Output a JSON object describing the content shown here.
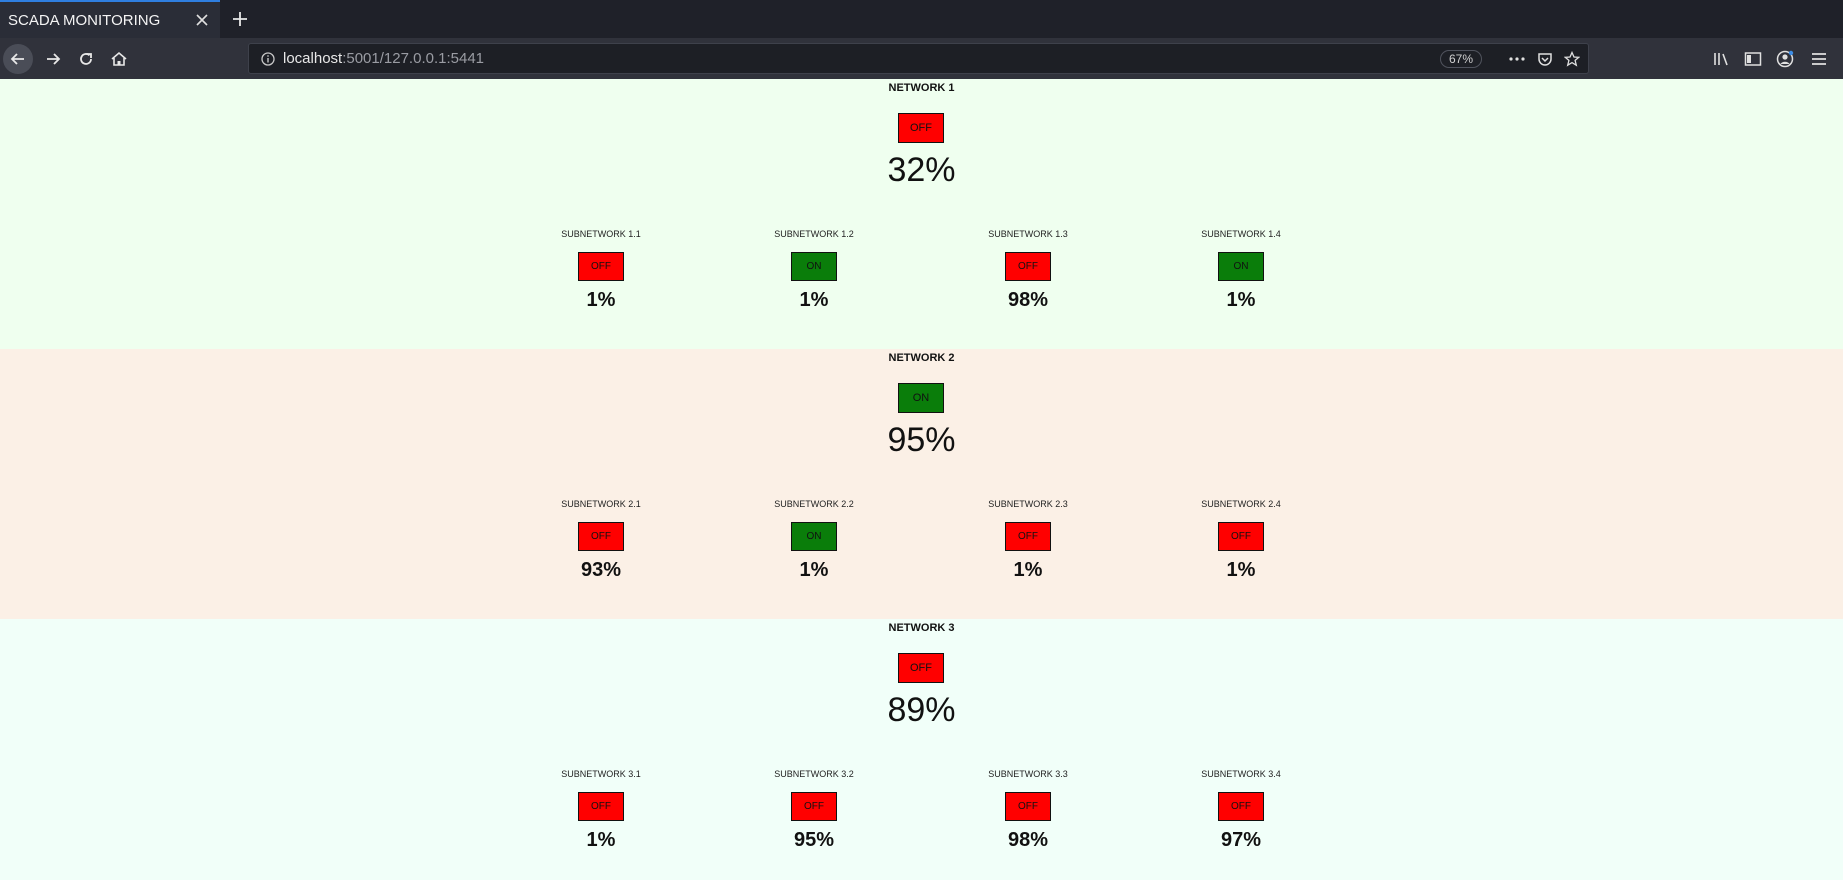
{
  "browser": {
    "tab_title": "SCADA MONITORING",
    "url_host": "localhost",
    "url_rest": ":5001/127.0.0.1:5441",
    "zoom": "67%"
  },
  "colors": {
    "off": "#ff0000",
    "on": "#0a7d0a"
  },
  "networks": [
    {
      "title": "NETWORK 1",
      "state": "OFF",
      "value": "32%",
      "subnetworks": [
        {
          "title": "SUBNETWORK 1.1",
          "state": "OFF",
          "value": "1%"
        },
        {
          "title": "SUBNETWORK 1.2",
          "state": "ON",
          "value": "1%"
        },
        {
          "title": "SUBNETWORK 1.3",
          "state": "OFF",
          "value": "98%"
        },
        {
          "title": "SUBNETWORK 1.4",
          "state": "ON",
          "value": "1%"
        }
      ]
    },
    {
      "title": "NETWORK 2",
      "state": "ON",
      "value": "95%",
      "subnetworks": [
        {
          "title": "SUBNETWORK 2.1",
          "state": "OFF",
          "value": "93%"
        },
        {
          "title": "SUBNETWORK 2.2",
          "state": "ON",
          "value": "1%"
        },
        {
          "title": "SUBNETWORK 2.3",
          "state": "OFF",
          "value": "1%"
        },
        {
          "title": "SUBNETWORK 2.4",
          "state": "OFF",
          "value": "1%"
        }
      ]
    },
    {
      "title": "NETWORK 3",
      "state": "OFF",
      "value": "89%",
      "subnetworks": [
        {
          "title": "SUBNETWORK 3.1",
          "state": "OFF",
          "value": "1%"
        },
        {
          "title": "SUBNETWORK 3.2",
          "state": "OFF",
          "value": "95%"
        },
        {
          "title": "SUBNETWORK 3.3",
          "state": "OFF",
          "value": "98%"
        },
        {
          "title": "SUBNETWORK 3.4",
          "state": "OFF",
          "value": "97%"
        }
      ]
    }
  ]
}
